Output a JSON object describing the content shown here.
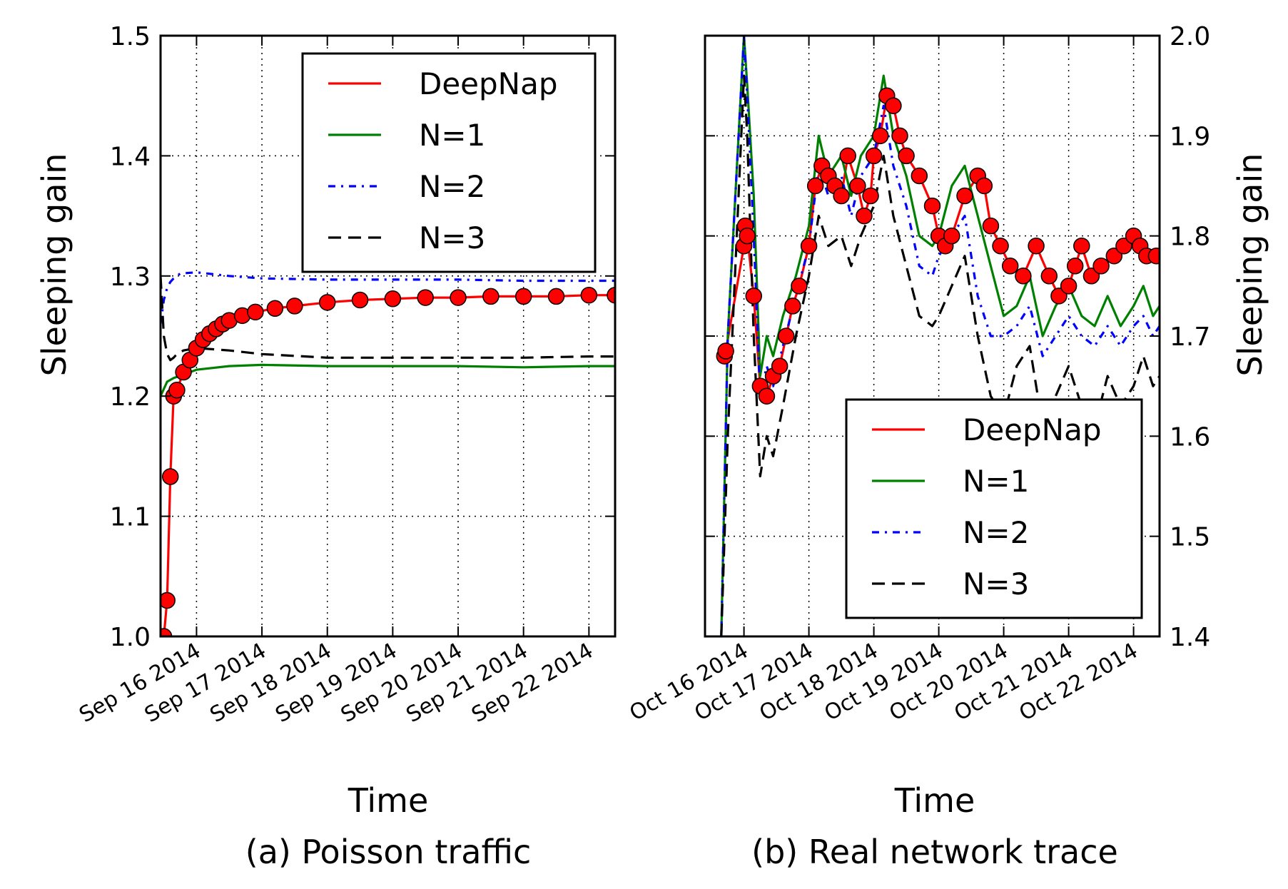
{
  "colors": {
    "DeepNap": "#ff0000",
    "N=1": "#008000",
    "N=2": "#0000ff",
    "N=3": "#000000",
    "marker_fill": "#ff0000",
    "marker_edge": "#000000"
  },
  "chart_data": [
    {
      "type": "line",
      "caption": "(a) Poisson traffic",
      "xlabel": "Time",
      "ylabel": "Sleeping gain",
      "ylabel_side": "left",
      "xlim": [
        -0.55,
        6.4
      ],
      "ylim": [
        1.0,
        1.5
      ],
      "yticks": [
        1.0,
        1.1,
        1.2,
        1.3,
        1.4,
        1.5
      ],
      "yticklabels": [
        "1.0",
        "1.1",
        "1.2",
        "1.3",
        "1.4",
        "1.5"
      ],
      "xticks": [
        0,
        1,
        2,
        3,
        4,
        5,
        6
      ],
      "xticklabels": [
        "Sep 16 2014",
        "Sep 17 2014",
        "Sep 18 2014",
        "Sep 19 2014",
        "Sep 20 2014",
        "Sep 21 2014",
        "Sep 22 2014"
      ],
      "grid": true,
      "legend": {
        "loc": "upper right",
        "entries": [
          "DeepNap",
          "N=1",
          "N=2",
          "N=3"
        ]
      },
      "series": [
        {
          "name": "DeepNap",
          "style": "solid-markers",
          "x": [
            -0.5,
            -0.45,
            -0.4,
            -0.35,
            -0.3,
            -0.2,
            -0.1,
            0,
            0.1,
            0.2,
            0.3,
            0.4,
            0.5,
            0.7,
            0.9,
            1.2,
            1.5,
            2,
            2.5,
            3,
            3.5,
            4,
            4.5,
            5,
            5.5,
            6,
            6.4
          ],
          "y": [
            1.0,
            1.03,
            1.133,
            1.2,
            1.205,
            1.22,
            1.23,
            1.24,
            1.247,
            1.252,
            1.256,
            1.26,
            1.263,
            1.267,
            1.27,
            1.273,
            1.275,
            1.278,
            1.28,
            1.281,
            1.282,
            1.282,
            1.283,
            1.283,
            1.283,
            1.284,
            1.284
          ]
        },
        {
          "name": "N=1",
          "style": "solid",
          "x": [
            -0.55,
            -0.45,
            -0.35,
            -0.2,
            0,
            0.5,
            1,
            2,
            3,
            4,
            5,
            6,
            6.4
          ],
          "y": [
            1.2,
            1.212,
            1.215,
            1.218,
            1.222,
            1.225,
            1.226,
            1.225,
            1.225,
            1.225,
            1.224,
            1.225,
            1.225
          ]
        },
        {
          "name": "N=2",
          "style": "dash-dot",
          "x": [
            -0.55,
            -0.5,
            -0.45,
            -0.4,
            -0.35,
            -0.25,
            0,
            0.5,
            1,
            2,
            3,
            4,
            5,
            6,
            6.4
          ],
          "y": [
            1.26,
            1.28,
            1.29,
            1.295,
            1.298,
            1.302,
            1.303,
            1.3,
            1.298,
            1.297,
            1.297,
            1.297,
            1.296,
            1.296,
            1.296
          ]
        },
        {
          "name": "N=3",
          "style": "dashed",
          "x": [
            -0.55,
            -0.5,
            -0.45,
            -0.4,
            -0.35,
            -0.3,
            -0.2,
            0,
            0.5,
            1,
            2,
            3,
            4,
            5,
            6,
            6.4
          ],
          "y": [
            1.3,
            1.25,
            1.235,
            1.23,
            1.232,
            1.235,
            1.238,
            1.24,
            1.238,
            1.235,
            1.232,
            1.232,
            1.232,
            1.232,
            1.233,
            1.233
          ]
        }
      ]
    },
    {
      "type": "line",
      "caption": "(b) Real network trace",
      "xlabel": "Time",
      "ylabel": "Sleeping gain",
      "ylabel_side": "right",
      "xlim": [
        -0.6,
        6.4
      ],
      "ylim": [
        1.4,
        2.0
      ],
      "yticks": [
        1.4,
        1.5,
        1.6,
        1.7,
        1.8,
        1.9,
        2.0
      ],
      "yticklabels": [
        "1.4",
        "1.5",
        "1.6",
        "1.7",
        "1.8",
        "1.9",
        "2.0"
      ],
      "xticks": [
        0,
        1,
        2,
        3,
        4,
        5,
        6
      ],
      "xticklabels": [
        "Oct 16 2014",
        "Oct 17 2014",
        "Oct 18 2014",
        "Oct 19 2014",
        "Oct 20 2014",
        "Oct 21 2014",
        "Oct 22 2014"
      ],
      "grid": true,
      "legend": {
        "loc": "lower right",
        "entries": [
          "DeepNap",
          "N=1",
          "N=2",
          "N=3"
        ]
      },
      "series": [
        {
          "name": "DeepNap",
          "style": "solid-markers",
          "x": [
            -0.3,
            -0.28,
            0,
            0.02,
            0.05,
            0.15,
            0.25,
            0.35,
            0.45,
            0.55,
            0.65,
            0.75,
            0.85,
            1.0,
            1.1,
            1.2,
            1.3,
            1.4,
            1.5,
            1.6,
            1.75,
            1.85,
            1.95,
            2.0,
            2.1,
            2.2,
            2.3,
            2.4,
            2.5,
            2.7,
            2.9,
            3.0,
            3.1,
            3.2,
            3.4,
            3.6,
            3.7,
            3.8,
            3.95,
            4.1,
            4.3,
            4.5,
            4.7,
            4.85,
            5.0,
            5.1,
            5.2,
            5.35,
            5.5,
            5.7,
            5.85,
            6.0,
            6.1,
            6.2,
            6.35
          ],
          "y": [
            1.68,
            1.685,
            1.79,
            1.81,
            1.8,
            1.74,
            1.65,
            1.64,
            1.66,
            1.67,
            1.7,
            1.73,
            1.75,
            1.79,
            1.85,
            1.87,
            1.86,
            1.85,
            1.84,
            1.88,
            1.85,
            1.82,
            1.84,
            1.88,
            1.9,
            1.94,
            1.93,
            1.9,
            1.88,
            1.86,
            1.83,
            1.8,
            1.79,
            1.8,
            1.84,
            1.86,
            1.85,
            1.81,
            1.79,
            1.77,
            1.76,
            1.79,
            1.76,
            1.74,
            1.75,
            1.77,
            1.79,
            1.76,
            1.77,
            1.78,
            1.79,
            1.8,
            1.79,
            1.78,
            1.78
          ]
        },
        {
          "name": "N=1",
          "style": "solid",
          "x": [
            -0.35,
            -0.25,
            0.0,
            0.05,
            0.15,
            0.25,
            0.35,
            0.45,
            0.6,
            0.8,
            1.0,
            1.15,
            1.3,
            1.5,
            1.65,
            1.8,
            2.0,
            2.15,
            2.3,
            2.5,
            2.7,
            2.9,
            3.0,
            3.2,
            3.4,
            3.6,
            3.8,
            4.0,
            4.2,
            4.4,
            4.6,
            4.8,
            5.0,
            5.2,
            5.4,
            5.6,
            5.8,
            6.0,
            6.15,
            6.3,
            6.4
          ],
          "y": [
            1.4,
            1.7,
            2.0,
            1.95,
            1.84,
            1.66,
            1.7,
            1.68,
            1.72,
            1.76,
            1.81,
            1.9,
            1.86,
            1.88,
            1.84,
            1.88,
            1.9,
            1.96,
            1.9,
            1.86,
            1.8,
            1.79,
            1.8,
            1.85,
            1.87,
            1.82,
            1.77,
            1.72,
            1.73,
            1.76,
            1.7,
            1.73,
            1.75,
            1.72,
            1.71,
            1.74,
            1.71,
            1.73,
            1.75,
            1.72,
            1.73
          ]
        },
        {
          "name": "N=2",
          "style": "dash-dot",
          "x": [
            -0.35,
            -0.25,
            0.0,
            0.05,
            0.15,
            0.25,
            0.35,
            0.45,
            0.6,
            0.8,
            1.0,
            1.15,
            1.3,
            1.5,
            1.65,
            1.8,
            2.0,
            2.15,
            2.3,
            2.5,
            2.7,
            2.9,
            3.0,
            3.2,
            3.4,
            3.6,
            3.8,
            4.0,
            4.2,
            4.4,
            4.6,
            4.8,
            5.0,
            5.2,
            5.4,
            5.6,
            5.8,
            6.0,
            6.15,
            6.3,
            6.4
          ],
          "y": [
            1.4,
            1.7,
            2.0,
            1.94,
            1.8,
            1.64,
            1.67,
            1.65,
            1.69,
            1.74,
            1.79,
            1.87,
            1.84,
            1.86,
            1.82,
            1.86,
            1.88,
            1.93,
            1.87,
            1.83,
            1.77,
            1.76,
            1.78,
            1.8,
            1.82,
            1.74,
            1.7,
            1.7,
            1.71,
            1.73,
            1.68,
            1.7,
            1.72,
            1.7,
            1.69,
            1.71,
            1.69,
            1.71,
            1.72,
            1.7,
            1.71
          ]
        },
        {
          "name": "N=3",
          "style": "dashed",
          "x": [
            -0.35,
            -0.25,
            0.0,
            0.05,
            0.15,
            0.25,
            0.35,
            0.45,
            0.6,
            0.8,
            1.0,
            1.15,
            1.3,
            1.5,
            1.65,
            1.8,
            2.0,
            2.15,
            2.3,
            2.5,
            2.7,
            2.9,
            3.0,
            3.2,
            3.4,
            3.6,
            3.8,
            4.0,
            4.2,
            4.4,
            4.6,
            4.8,
            5.0,
            5.2,
            5.4,
            5.6,
            5.8,
            6.0,
            6.15,
            6.3,
            6.4
          ],
          "y": [
            1.4,
            1.6,
            1.96,
            1.9,
            1.7,
            1.56,
            1.6,
            1.58,
            1.63,
            1.7,
            1.76,
            1.82,
            1.79,
            1.8,
            1.77,
            1.8,
            1.83,
            1.88,
            1.82,
            1.77,
            1.72,
            1.71,
            1.72,
            1.75,
            1.78,
            1.7,
            1.64,
            1.62,
            1.67,
            1.69,
            1.61,
            1.64,
            1.67,
            1.63,
            1.61,
            1.66,
            1.63,
            1.65,
            1.68,
            1.65,
            1.66
          ]
        }
      ]
    }
  ]
}
